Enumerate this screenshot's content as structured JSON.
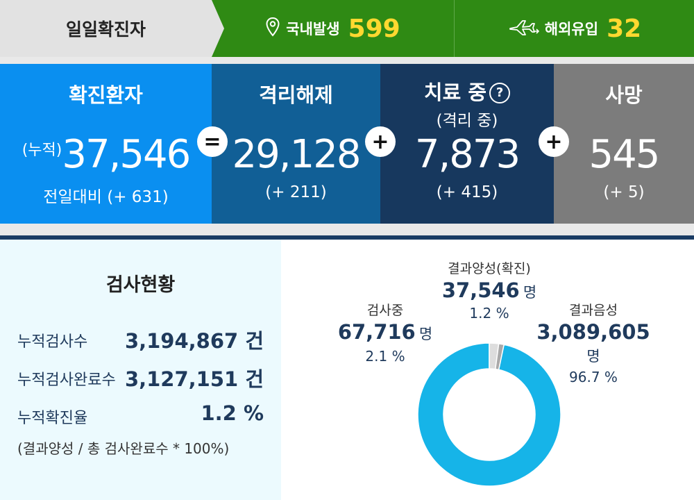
{
  "header": {
    "daily_label": "일일확진자",
    "domestic_label": "국내발생",
    "domestic_value": "599",
    "overseas_label": "해외유입",
    "overseas_value": "32"
  },
  "stats": {
    "confirmed": {
      "title": "확진환자",
      "prefix": "(누적)",
      "value": "37,546",
      "delta": "전일대비 (+ 631)"
    },
    "released": {
      "title": "격리해제",
      "value": "29,128",
      "delta": "(+ 211)"
    },
    "treatment": {
      "title": "치료 중",
      "help": "?",
      "subtitle": "(격리 중)",
      "value": "7,873",
      "delta": "(+ 415)"
    },
    "death": {
      "title": "사망",
      "value": "545",
      "delta": "(+ 5)"
    },
    "operators": [
      "=",
      "+",
      "+"
    ]
  },
  "testing": {
    "title": "검사현황",
    "rows": [
      {
        "label": "누적검사수",
        "value": "3,194,867 건"
      },
      {
        "label": "누적검사완료수",
        "value": "3,127,151 건"
      },
      {
        "label": "누적확진율",
        "value": "1.2 %"
      }
    ],
    "note": "(결과양성 / 총 검사완료수 * 100%)"
  },
  "chart_data": {
    "type": "pie",
    "donut": true,
    "slices": [
      {
        "label": "결과음성",
        "value": 3089605,
        "unit": "명",
        "percent": "96.7 %",
        "display": "3,089,605",
        "color": "#16b4e8"
      },
      {
        "label": "검사중",
        "value": 67716,
        "unit": "명",
        "percent": "2.1 %",
        "display": "67,716",
        "color": "#dddddd"
      },
      {
        "label": "결과양성(확진)",
        "value": 37546,
        "unit": "명",
        "percent": "1.2 %",
        "display": "37,546",
        "color": "#a9a9a9"
      }
    ]
  },
  "colors": {
    "top_green": "#2f8a14",
    "accent_yellow": "#ffd830",
    "confirmed_blue": "#0a8ff0",
    "released_blue": "#115f96",
    "treatment_navy": "#17385e",
    "death_gray": "#7c7c7c",
    "donut_blue": "#16b4e8"
  }
}
